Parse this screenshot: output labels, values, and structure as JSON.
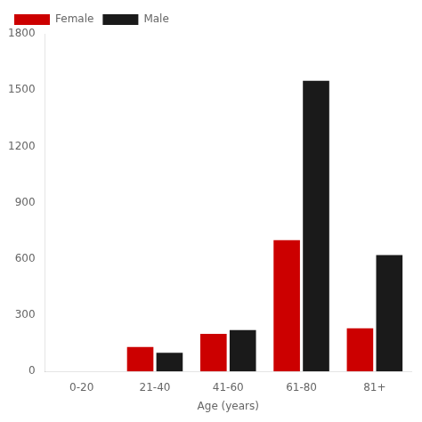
{
  "chart_data": {
    "type": "bar",
    "xlabel": "Age (years)",
    "categories": [
      "0-20",
      "21-40",
      "41-60",
      "61-80",
      "81+"
    ],
    "series": [
      {
        "name": "Female",
        "color": "#cc0000",
        "values": [
          0,
          130,
          200,
          700,
          230
        ]
      },
      {
        "name": "Male",
        "color": "#1a1a1a",
        "values": [
          0,
          100,
          220,
          1550,
          620
        ]
      }
    ],
    "ylim": [
      0,
      1800
    ],
    "yticks": [
      0,
      300,
      600,
      900,
      1200,
      1500,
      1800
    ],
    "grid": false,
    "legend": "upper left"
  }
}
